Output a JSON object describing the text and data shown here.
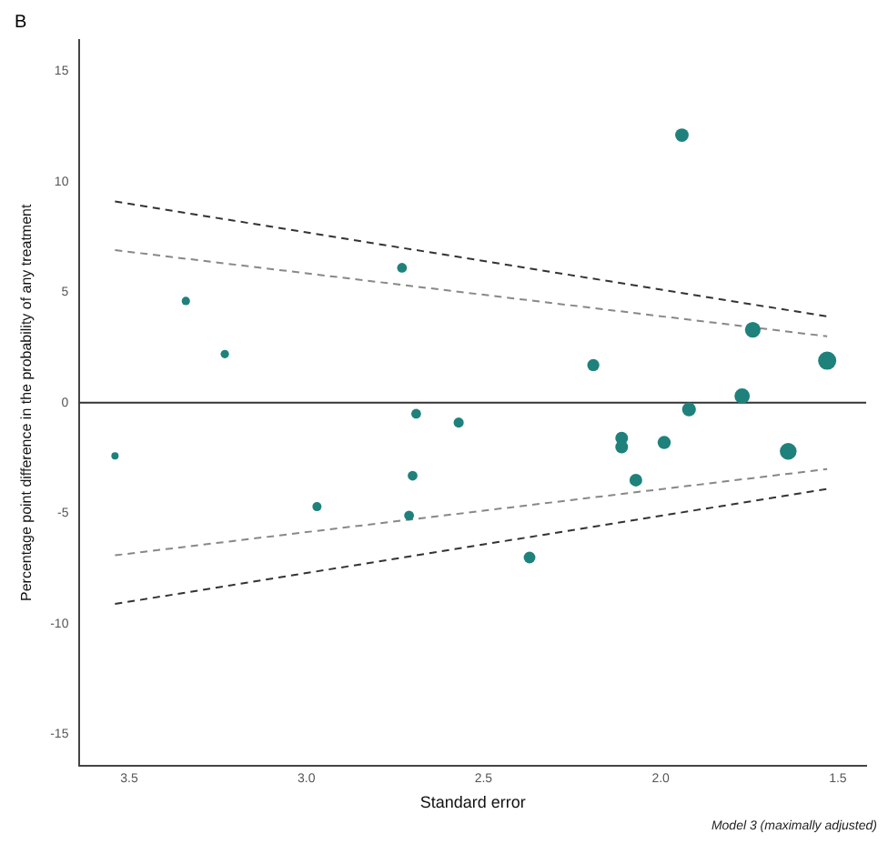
{
  "chart_data": {
    "type": "bubble",
    "title": "B",
    "xlabel": "Standard error",
    "ylabel": "Percentage point difference in the probability of any treatment",
    "annotations": [
      "Model 3 (maximally adjusted)"
    ],
    "xlim": [
      3.64,
      1.42
    ],
    "xticks": [
      {
        "value": 3.5,
        "label": "3.5"
      },
      {
        "value": 3,
        "label": "3.0"
      },
      {
        "value": 2.5,
        "label": "2.5"
      },
      {
        "value": 2,
        "label": "2.0"
      },
      {
        "value": 1.5,
        "label": "1.5"
      }
    ],
    "ylim": [
      -16.4,
      16.4
    ],
    "yticks": [
      -15,
      -10,
      -5,
      0,
      5,
      10,
      15
    ],
    "grid": false,
    "legend": false,
    "ref_lines": [
      {
        "axis": "y",
        "value": 0,
        "color": "#333333"
      }
    ],
    "series": [
      {
        "color": "#1f817b",
        "x": [
          3.54,
          3.34,
          3.23,
          2.97,
          2.73,
          2.71,
          2.7,
          2.69,
          2.57,
          2.37,
          2.19,
          2.11,
          2.11,
          2.07,
          1.99,
          1.94,
          1.92,
          1.77,
          1.74,
          1.64,
          1.53
        ],
        "values": [
          -2.4,
          4.6,
          2.2,
          -4.7,
          6.1,
          -5.1,
          -3.3,
          -0.5,
          -0.9,
          -7.0,
          1.7,
          -1.6,
          -2.0,
          -3.5,
          -1.8,
          12.1,
          -0.3,
          0.3,
          3.3,
          -2.2,
          1.9
        ],
        "sizes": [
          0.16,
          0.21,
          0.21,
          0.25,
          0.29,
          0.29,
          0.29,
          0.29,
          0.31,
          0.41,
          0.44,
          0.49,
          0.49,
          0.49,
          0.52,
          0.55,
          0.58,
          0.71,
          0.74,
          0.85,
          1
        ]
      },
      {
        "type": "line",
        "color": "#333333",
        "line_style": "dashed",
        "marker": "none",
        "x": [
          3.54,
          1.53
        ],
        "values": [
          9.1,
          3.9
        ]
      },
      {
        "type": "line",
        "color": "#888888",
        "line_style": "dashed",
        "marker": "none",
        "x": [
          3.54,
          1.53
        ],
        "values": [
          6.9,
          3.0
        ]
      },
      {
        "type": "line",
        "color": "#888888",
        "line_style": "dashed",
        "marker": "none",
        "x": [
          3.54,
          1.53
        ],
        "values": [
          -6.9,
          -3.0
        ]
      },
      {
        "type": "line",
        "color": "#333333",
        "line_style": "dashed",
        "marker": "none",
        "x": [
          3.54,
          1.53
        ],
        "values": [
          -9.1,
          -3.9
        ]
      }
    ]
  }
}
